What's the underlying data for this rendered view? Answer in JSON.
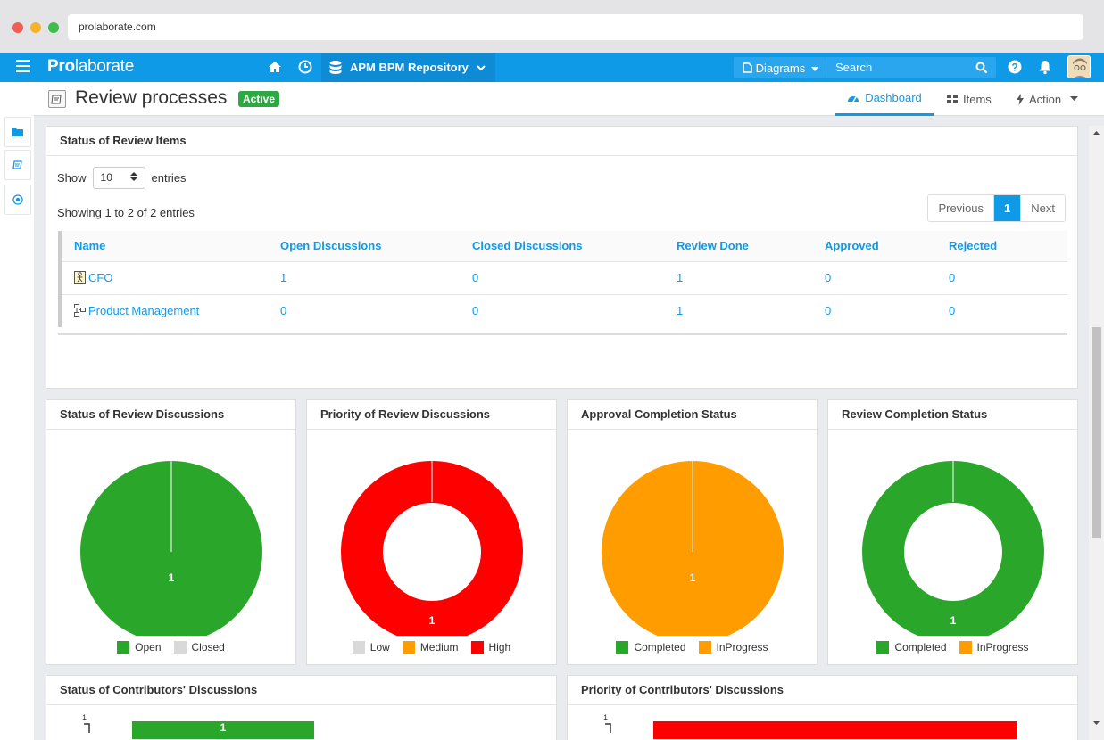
{
  "browser": {
    "url": "prolaborate.com"
  },
  "header": {
    "brand_bold": "Pro",
    "brand_rest": "laborate",
    "repository": "APM BPM Repository",
    "diagrams_label": "Diagrams",
    "search_placeholder": "Search"
  },
  "page": {
    "title": "Review processes",
    "status": "Active",
    "tabs": [
      {
        "label": "Dashboard",
        "icon": "dashboard-icon",
        "active": true
      },
      {
        "label": "Items",
        "icon": "grid-icon",
        "active": false
      },
      {
        "label": "Action",
        "icon": "bolt-icon",
        "active": false
      }
    ]
  },
  "review_items": {
    "title": "Status of Review Items",
    "show_label": "Show",
    "entries_value": "10",
    "entries_label": "entries",
    "showing_text": "Showing 1 to 2 of 2 entries",
    "pager": {
      "previous": "Previous",
      "current": "1",
      "next": "Next"
    },
    "columns": [
      "Name",
      "Open Discussions",
      "Closed Discussions",
      "Review Done",
      "Approved",
      "Rejected"
    ],
    "rows": [
      {
        "name": "CFO",
        "icon": "actor-icon",
        "open": "1",
        "closed": "0",
        "review_done": "1",
        "approved": "0",
        "rejected": "0"
      },
      {
        "name": "Product Management",
        "icon": "process-icon",
        "open": "0",
        "closed": "0",
        "review_done": "1",
        "approved": "0",
        "rejected": "0"
      }
    ]
  },
  "chart_data": [
    {
      "type": "pie",
      "title": "Status of Review Discussions",
      "categories": [
        "Open",
        "Closed"
      ],
      "values": [
        1,
        0
      ],
      "colors": [
        "#2aa72b",
        "#d9d9d9"
      ],
      "data_label": "1"
    },
    {
      "type": "pie",
      "variant": "donut",
      "title": "Priority of Review Discussions",
      "categories": [
        "Low",
        "Medium",
        "High"
      ],
      "values": [
        0,
        0,
        1
      ],
      "colors": [
        "#d9d9d9",
        "#ff9c00",
        "#ff0000"
      ],
      "data_label": "1"
    },
    {
      "type": "pie",
      "title": "Approval Completion Status",
      "categories": [
        "Completed",
        "InProgress"
      ],
      "values": [
        0,
        1
      ],
      "colors": [
        "#2aa72b",
        "#ff9c00"
      ],
      "data_label": "1"
    },
    {
      "type": "pie",
      "variant": "donut",
      "title": "Review Completion Status",
      "categories": [
        "Completed",
        "InProgress"
      ],
      "values": [
        1,
        0
      ],
      "colors": [
        "#2aa72b",
        "#ff9c00"
      ],
      "data_label": "1"
    },
    {
      "type": "bar",
      "title": "Status of Contributors' Discussions",
      "tick_labels": [
        "1"
      ],
      "values": [
        1
      ],
      "color": "#2aa72b",
      "data_label": "1"
    },
    {
      "type": "bar",
      "title": "Priority of Contributors' Discussions",
      "tick_labels": [
        "1"
      ],
      "values": [
        1
      ],
      "color": "#ff0000"
    }
  ]
}
